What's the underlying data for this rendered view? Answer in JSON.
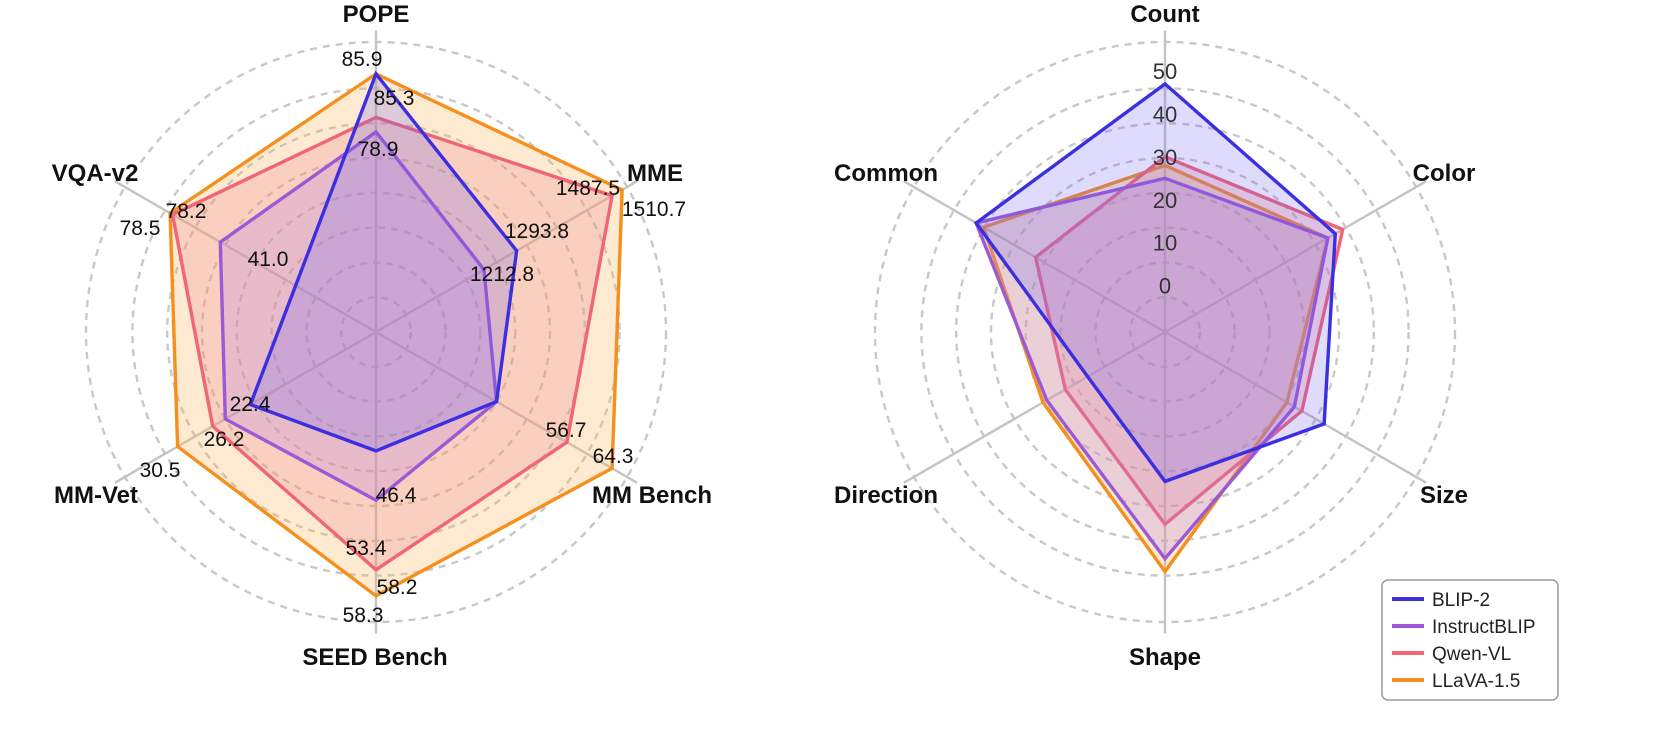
{
  "series_styles": [
    {
      "name": "BLIP-2",
      "color": "#3b2fe0",
      "fill": "#6a5cf0",
      "fill_opacity": 0.22
    },
    {
      "name": "InstructBLIP",
      "color": "#9b59d6",
      "fill": "#b27ee6",
      "fill_opacity": 0.25
    },
    {
      "name": "Qwen-VL",
      "color": "#f06677",
      "fill": "#f07f8c",
      "fill_opacity": 0.25
    },
    {
      "name": "LLaVA-1.5",
      "color": "#f5901e",
      "fill": "#f7b25a",
      "fill_opacity": 0.28
    }
  ],
  "chart_data": [
    {
      "type": "radar",
      "title": "",
      "axes": [
        "POPE",
        "MME",
        "MM Bench",
        "SEED Bench",
        "MM-Vet",
        "VQA-v2"
      ],
      "grid": true,
      "series": [
        {
          "name": "BLIP-2",
          "values": [
            85.3,
            1293.8,
            null,
            46.4,
            22.4,
            41.0
          ]
        },
        {
          "name": "InstructBLIP",
          "values": [
            78.9,
            1212.8,
            null,
            53.4,
            26.2,
            null
          ]
        },
        {
          "name": "Qwen-VL",
          "values": [
            null,
            1487.5,
            56.7,
            58.2,
            null,
            78.2
          ]
        },
        {
          "name": "LLaVA-1.5",
          "values": [
            85.9,
            1510.7,
            64.3,
            58.3,
            30.5,
            78.5
          ]
        }
      ]
    },
    {
      "type": "radar",
      "title": "",
      "axes": [
        "Count",
        "Color",
        "Size",
        "Shape",
        "Direction",
        "Common"
      ],
      "rticks": [
        "0",
        "10",
        "20",
        "30",
        "40",
        "50"
      ],
      "grid": true,
      "legend_position": "bottom-right",
      "series": [
        {
          "name": "BLIP-2",
          "values": [
            47,
            35,
            32,
            24,
            10,
            40
          ]
        },
        {
          "name": "InstructBLIP",
          "values": [
            25,
            33,
            24,
            42,
            21,
            40
          ]
        },
        {
          "name": "Qwen-VL",
          "values": [
            30,
            37,
            26,
            34,
            16,
            24
          ]
        },
        {
          "name": "LLaVA-1.5",
          "values": [
            28,
            33,
            22,
            45,
            22,
            38
          ]
        }
      ]
    }
  ]
}
